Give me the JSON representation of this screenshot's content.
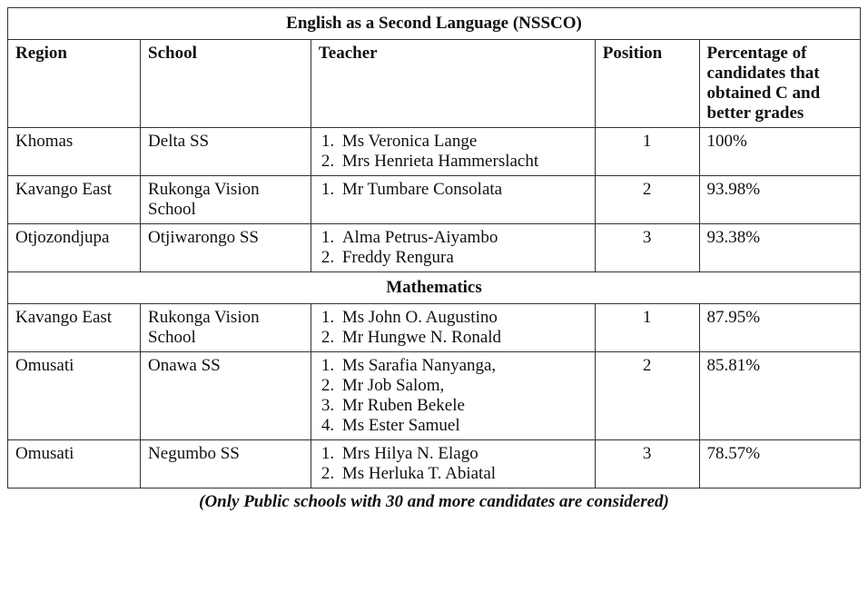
{
  "table": {
    "columns": {
      "region": "Region",
      "school": "School",
      "teacher": "Teacher",
      "position": "Position",
      "percentage": "Percentage of candidates that obtained C and better grades"
    },
    "sections": [
      {
        "title": "English as a Second Language (NSSCO)",
        "rows": [
          {
            "region": "Khomas",
            "school": "Delta SS",
            "teachers": [
              "Ms Veronica Lange",
              "Mrs Henrieta Hammerslacht"
            ],
            "position": "1",
            "percentage": "100%"
          },
          {
            "region": "Kavango East",
            "school": "Rukonga Vision School",
            "teachers": [
              "Mr Tumbare Consolata"
            ],
            "position": "2",
            "percentage": "93.98%"
          },
          {
            "region": "Otjozondjupa",
            "school": "Otjiwarongo SS",
            "teachers": [
              "Alma Petrus-Aiyambo",
              "Freddy Rengura"
            ],
            "position": "3",
            "percentage": "93.38%"
          }
        ]
      },
      {
        "title": "Mathematics",
        "rows": [
          {
            "region": "Kavango East",
            "school": "Rukonga Vision School",
            "teachers": [
              "Ms John O. Augustino",
              "Mr Hungwe N. Ronald"
            ],
            "position": "1",
            "percentage": "87.95%"
          },
          {
            "region": "Omusati",
            "school": "Onawa SS",
            "teachers": [
              "Ms Sarafia Nanyanga,",
              "Mr Job Salom,",
              "Mr Ruben Bekele",
              "Ms Ester Samuel"
            ],
            "position": "2",
            "percentage": "85.81%"
          },
          {
            "region": "Omusati",
            "school": "Negumbo SS",
            "teachers": [
              "Mrs Hilya N. Elago",
              "Ms Herluka T. Abiatal"
            ],
            "position": "3",
            "percentage": "78.57%"
          }
        ]
      }
    ],
    "caption": "(Only Public schools with 30 and more candidates are considered)"
  }
}
